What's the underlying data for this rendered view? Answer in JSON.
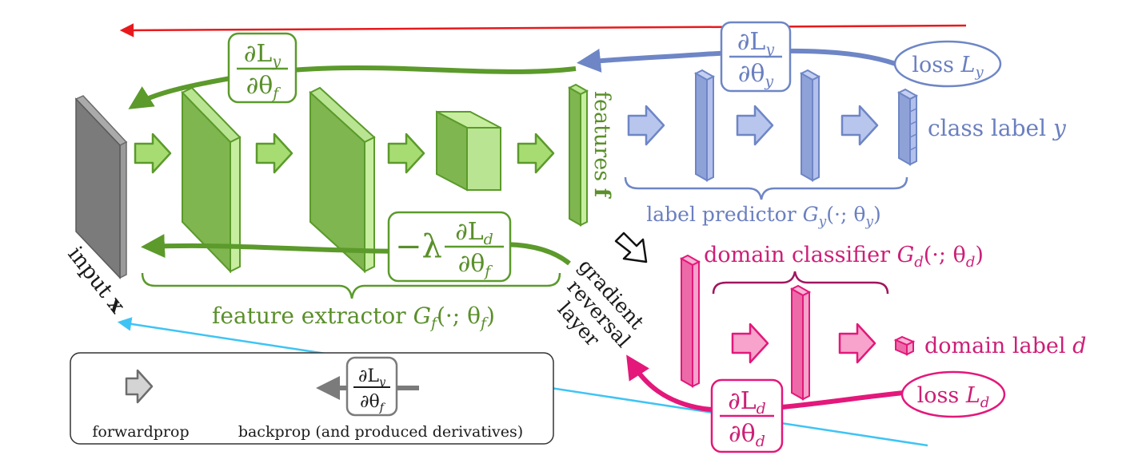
{
  "colors": {
    "green": "#5b9a2b",
    "green_fill": "#9bd36a",
    "blue": "#6e86c6",
    "blue_fill": "#a9b7e6",
    "pink": "#e3187a",
    "pink_fill": "#f58ac0",
    "gray": "#7b7b7b",
    "red_arrow": "#e8191c",
    "cyan_line": "#3ec4f4"
  },
  "labels": {
    "input": "input",
    "input_var": "x",
    "features": "features",
    "features_var": "f",
    "class_label": "class label",
    "class_label_var": "y",
    "label_predictor": "label predictor",
    "label_predictor_fn": "G",
    "label_predictor_sub": "y",
    "label_predictor_args": "(·; θ",
    "label_predictor_argsub": "y",
    "domain_classifier": "domain classifier",
    "domain_classifier_fn": "G",
    "domain_classifier_sub": "d",
    "domain_classifier_args": "(·; θ",
    "domain_classifier_argsub": "d",
    "feature_extractor": "feature extractor",
    "feature_extractor_fn": "G",
    "feature_extractor_sub": "f",
    "feature_extractor_args": "(·; θ",
    "feature_extractor_argsub": "f",
    "grl_line1": "gradient",
    "grl_line2": "reversal",
    "grl_line3": "layer",
    "domain_label": "domain label",
    "domain_label_var": "d",
    "loss_y": "loss",
    "loss_y_var": "L",
    "loss_y_sub": "y",
    "loss_d": "loss",
    "loss_d_var": "L",
    "loss_d_sub": "d"
  },
  "derivatives": {
    "dLy_dthetaf_num": "∂L",
    "dLy_dthetaf_num_sub": "y",
    "dLy_dthetaf_den": "∂θ",
    "dLy_dthetaf_den_sub": "f",
    "dLy_dthetay_num": "∂L",
    "dLy_dthetay_num_sub": "y",
    "dLy_dthetay_den": "∂θ",
    "dLy_dthetay_den_sub": "y",
    "neg_lambda": "−λ",
    "dLd_dthetaf_num": "∂L",
    "dLd_dthetaf_num_sub": "d",
    "dLd_dthetaf_den": "∂θ",
    "dLd_dthetaf_den_sub": "f",
    "dLd_dthetad_num": "∂L",
    "dLd_dthetad_num_sub": "d",
    "dLd_dthetad_den": "∂θ",
    "dLd_dthetad_den_sub": "d"
  },
  "legend": {
    "forwardprop": "forwardprop",
    "backprop": "backprop (and produced derivatives)",
    "deriv_num": "∂L",
    "deriv_num_sub": "y",
    "deriv_den": "∂θ",
    "deriv_den_sub": "f"
  }
}
